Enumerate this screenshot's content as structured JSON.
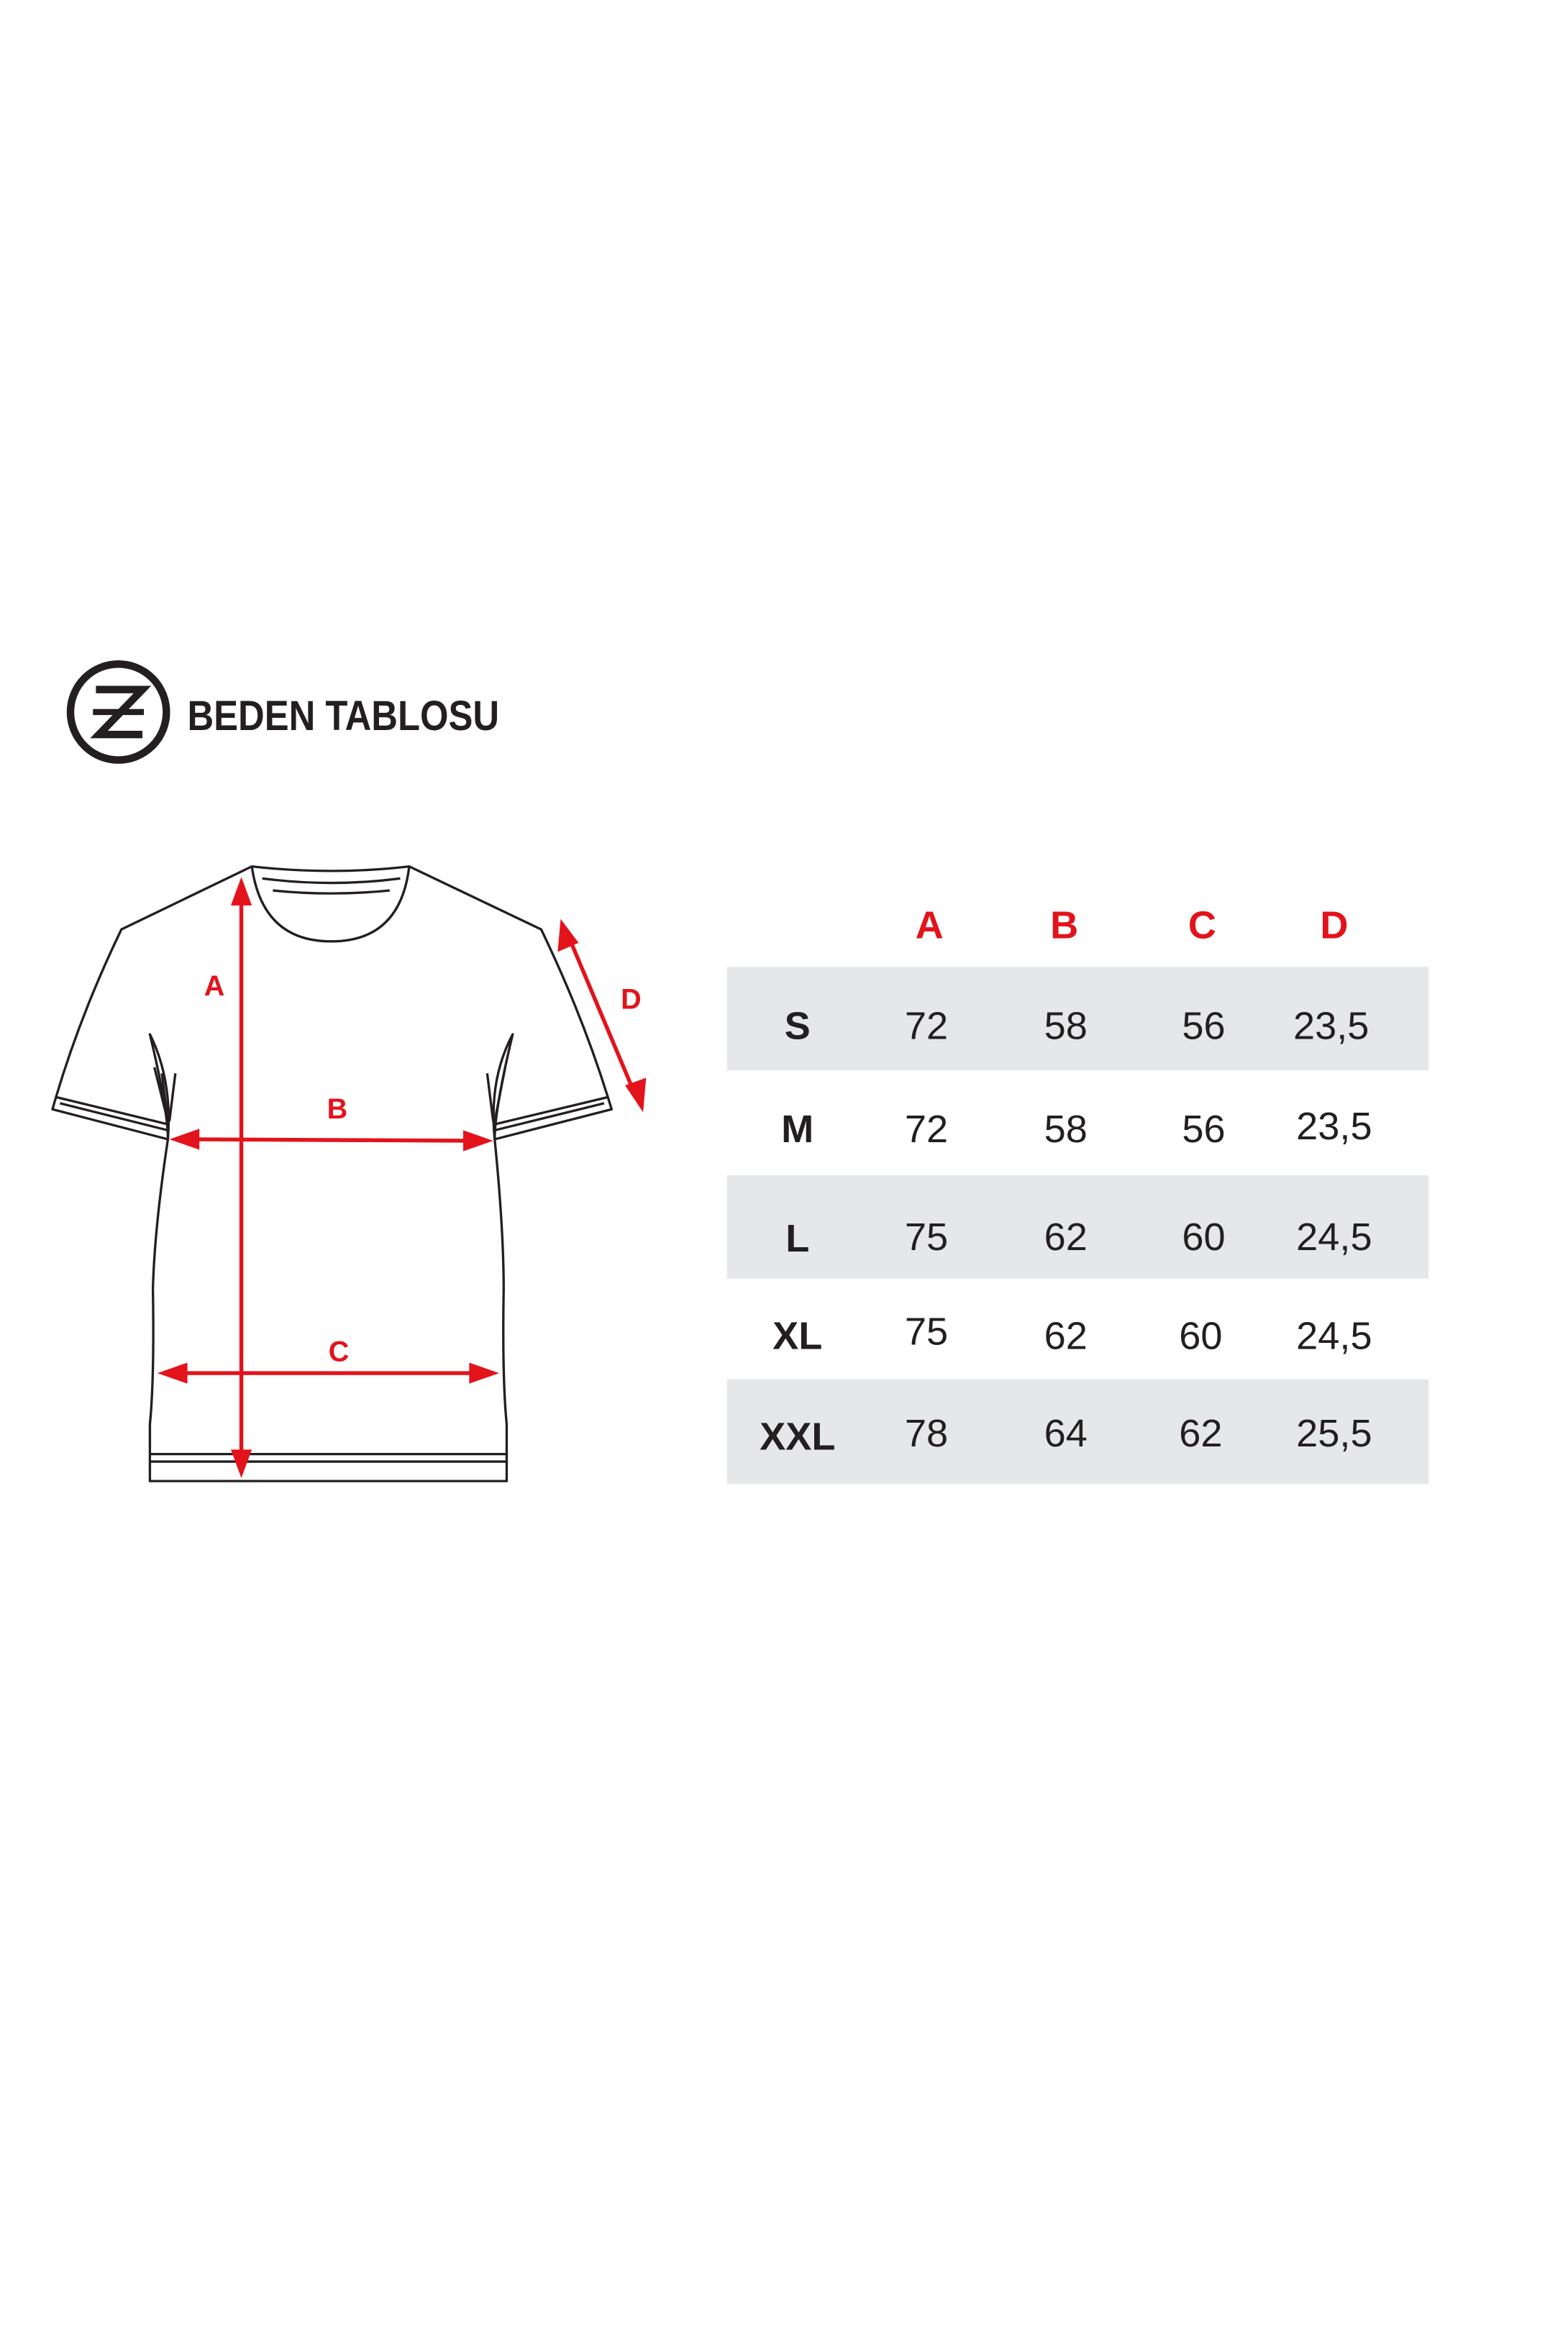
{
  "header": {
    "title": "BEDEN TABLOSU",
    "logo_icon": "ze-circle-logo"
  },
  "diagram": {
    "labels": {
      "a": "A",
      "b": "B",
      "c": "C",
      "d": "D"
    }
  },
  "table": {
    "columns": [
      "A",
      "B",
      "C",
      "D"
    ],
    "rows": [
      {
        "size": "S",
        "values": [
          "72",
          "58",
          "56",
          "23,5"
        ]
      },
      {
        "size": "M",
        "values": [
          "72",
          "58",
          "56",
          "23,5"
        ]
      },
      {
        "size": "L",
        "values": [
          "75",
          "62",
          "60",
          "24,5"
        ]
      },
      {
        "size": "XL",
        "values": [
          "75",
          "62",
          "60",
          "24,5"
        ]
      },
      {
        "size": "XXL",
        "values": [
          "78",
          "64",
          "62",
          "25,5"
        ]
      }
    ]
  },
  "colors": {
    "accent": "#e3131b",
    "stripe": "#e6e7e8",
    "text": "#231f20"
  }
}
